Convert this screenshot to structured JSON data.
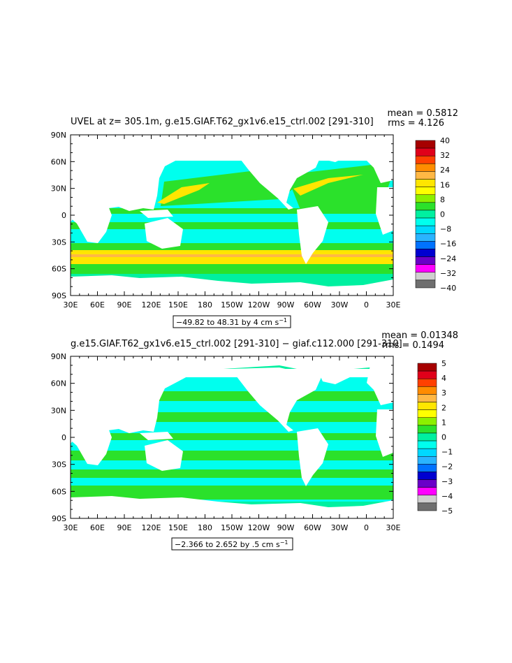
{
  "chart_data": [
    {
      "type": "heatmap",
      "title": "UVEL at z= 305.1m, g.e15.GIAF.T62_gx1v6.e15_ctrl.002 [291-310]",
      "stats": {
        "mean": "mean = 0.5812",
        "rms": "rms = 4.126"
      },
      "x_ticks": [
        "30E",
        "60E",
        "90E",
        "120E",
        "150E",
        "180",
        "150W",
        "120W",
        "90W",
        "60W",
        "30W",
        "0",
        "30E"
      ],
      "y_ticks": [
        "90N",
        "60N",
        "30N",
        "0",
        "30S",
        "60S",
        "90S"
      ],
      "range_label": "−49.82 to 48.31 by 4 cm s",
      "range_unit_sup": "−1",
      "colorbar": {
        "labels": [
          "40",
          "32",
          "24",
          "16",
          "8",
          "0",
          "−8",
          "−16",
          "−24",
          "−32",
          "−40"
        ],
        "colors": [
          "#a60000",
          "#e0001a",
          "#ff4000",
          "#ff8c00",
          "#ffb845",
          "#ffe600",
          "#ffff00",
          "#8cf000",
          "#2be12b",
          "#00f0a0",
          "#00ffee",
          "#00d8ff",
          "#2ab4ff",
          "#0072ff",
          "#0000d0",
          "#6a00c8",
          "#ff00ff",
          "#cfcfcf",
          "#6f6f6f"
        ]
      }
    },
    {
      "type": "heatmap",
      "title": "g.e15.GIAF.T62_gx1v6.e15_ctrl.002 [291-310] − giaf.c112.000 [291-310]",
      "stats": {
        "mean": "mean = 0.01348",
        "rms": "rms = 0.1494"
      },
      "x_ticks": [
        "30E",
        "60E",
        "90E",
        "120E",
        "150E",
        "180",
        "150W",
        "120W",
        "90W",
        "60W",
        "30W",
        "0",
        "30E"
      ],
      "y_ticks": [
        "90N",
        "60N",
        "30N",
        "0",
        "30S",
        "60S",
        "90S"
      ],
      "range_label": "−2.366 to 2.652 by .5 cm s",
      "range_unit_sup": "−1",
      "colorbar": {
        "labels": [
          "5",
          "4",
          "3",
          "2",
          "1",
          "0",
          "−1",
          "−2",
          "−3",
          "−4",
          "−5"
        ],
        "colors": [
          "#a60000",
          "#e0001a",
          "#ff4000",
          "#ff8c00",
          "#ffb845",
          "#ffe600",
          "#ffff00",
          "#8cf000",
          "#2be12b",
          "#00f0a0",
          "#00ffee",
          "#00d8ff",
          "#2ab4ff",
          "#0072ff",
          "#0000d0",
          "#6a00c8",
          "#ff00ff",
          "#cfcfcf",
          "#6f6f6f"
        ]
      }
    }
  ]
}
